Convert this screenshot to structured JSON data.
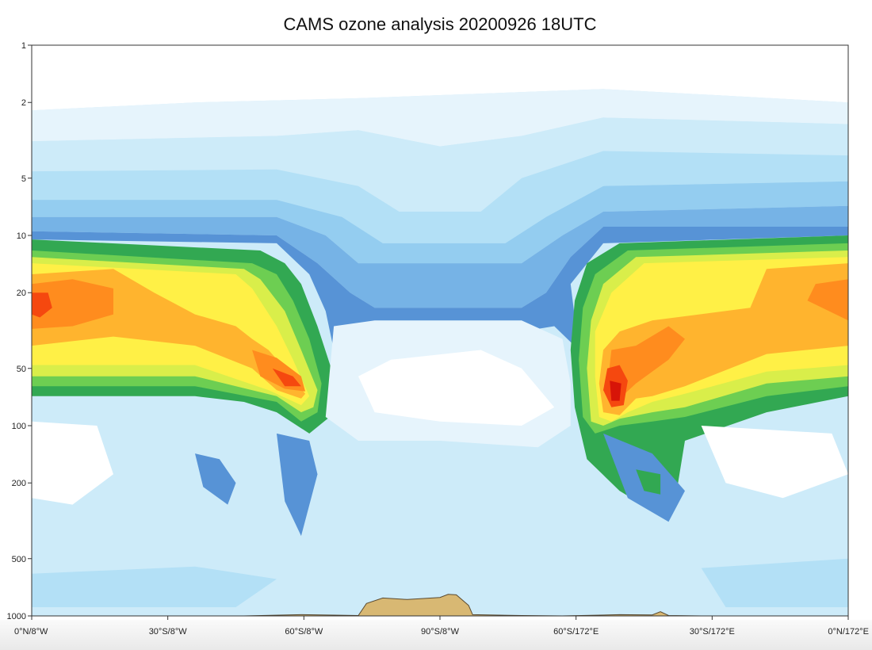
{
  "title": "CAMS ozone analysis 20200926 18UTC",
  "chart_data": {
    "type": "heatmap",
    "title": "CAMS ozone analysis 20200926 18UTC",
    "xlabel": "",
    "ylabel": "",
    "y_scale": "log",
    "y_inverted": true,
    "y_range": [
      1000,
      1
    ],
    "y_ticks": [
      "1",
      "2",
      "5",
      "10",
      "20",
      "50",
      "100",
      "200",
      "500",
      "1000"
    ],
    "x_ticks": [
      "0°N/8°W",
      "30°S/8°W",
      "60°S/8°W",
      "90°S/8°W",
      "60°S/172°E",
      "30°S/172°E",
      "0°N/172°E"
    ],
    "grid": false,
    "legend": "none",
    "colors": {
      "level_0": "#ffffff",
      "level_1": "#e6f4fc",
      "level_2": "#cdebf9",
      "level_3": "#b3e0f6",
      "level_4": "#94cdf0",
      "level_5": "#76b3e6",
      "level_6": "#5793d6",
      "level_7": "#4a86cf",
      "level_8": "#32a852",
      "level_9": "#6dce52",
      "level_10": "#d9ee4a",
      "level_11": "#fff046",
      "level_12": "#ffb42e",
      "level_13": "#ff8c1e",
      "level_14": "#f5480f",
      "level_15": "#d71508",
      "topography": "#d8b873"
    }
  }
}
